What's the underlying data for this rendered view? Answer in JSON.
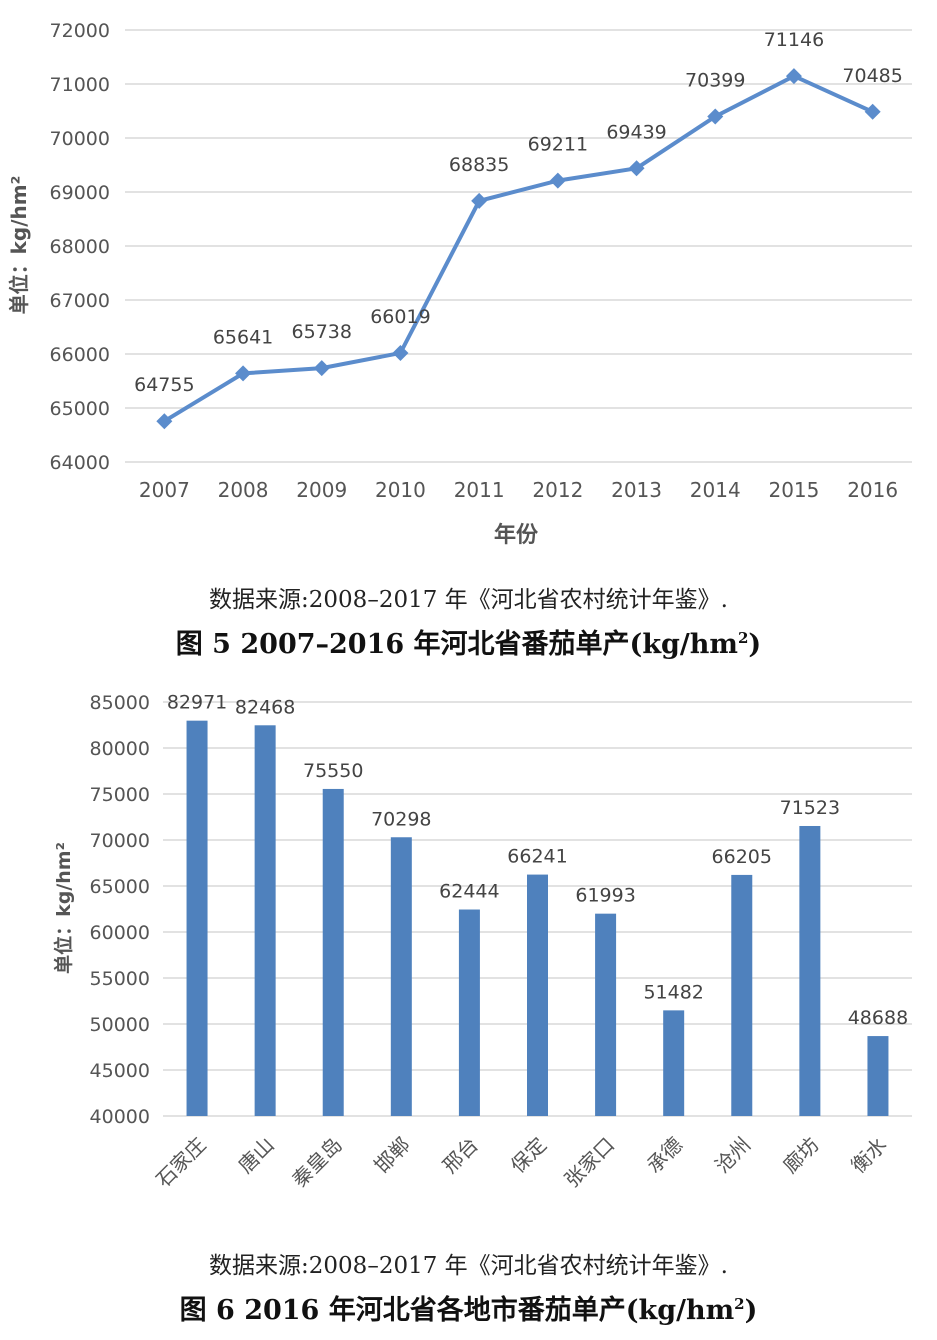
{
  "chart_data": [
    {
      "type": "line",
      "xlabel": "年份",
      "ylabel": "单位：kg/hm²",
      "categories": [
        "2007",
        "2008",
        "2009",
        "2010",
        "2011",
        "2012",
        "2013",
        "2014",
        "2015",
        "2016"
      ],
      "values": [
        64755,
        65641,
        65738,
        66019,
        68835,
        69211,
        69439,
        70399,
        71146,
        70485
      ],
      "ylim": [
        64000,
        72000
      ],
      "yticks": [
        "64000",
        "65000",
        "66000",
        "67000",
        "68000",
        "69000",
        "70000",
        "71000",
        "72000"
      ],
      "grid": true,
      "color": "#5b8ccc"
    },
    {
      "type": "bar",
      "ylabel": "单位：kg/hm²",
      "categories": [
        "石家庄",
        "唐山",
        "秦皇岛",
        "邯郸",
        "邢台",
        "保定",
        "张家口",
        "承德",
        "沧州",
        "廊坊",
        "衡水"
      ],
      "values": [
        82971,
        82468,
        75550,
        70298,
        62444,
        66241,
        61993,
        51482,
        66205,
        71523,
        48688
      ],
      "ylim": [
        40000,
        85000
      ],
      "yticks": [
        "40000",
        "45000",
        "50000",
        "55000",
        "60000",
        "65000",
        "70000",
        "75000",
        "80000",
        "85000"
      ],
      "grid": true,
      "color": "#4f81bd"
    }
  ],
  "figure1": {
    "source": "数据来源:2008–2017 年《河北省农村统计年鉴》.",
    "caption_main": "图 5  2007–2016 年河北省番茄单产(kg/hm",
    "caption_sup": "2",
    "caption_end": ")"
  },
  "figure2": {
    "source": "数据来源:2008–2017 年《河北省农村统计年鉴》.",
    "caption_main": "图 6  2016 年河北省各地市番茄单产(kg/hm",
    "caption_sup": "2",
    "caption_end": ")"
  }
}
